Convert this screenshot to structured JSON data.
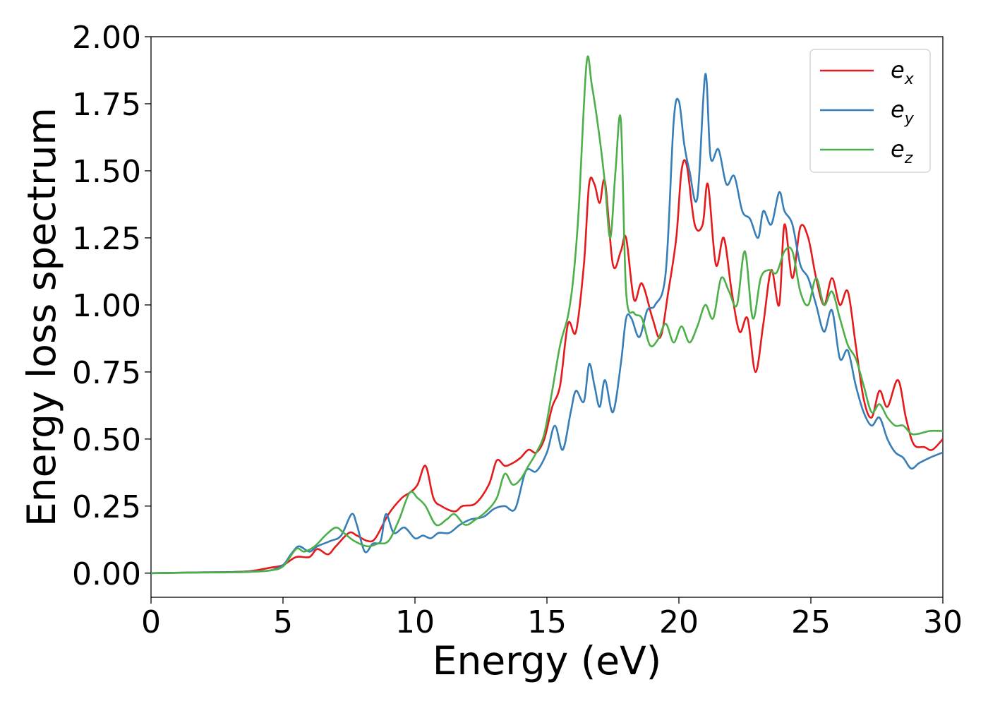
{
  "chart_data": {
    "type": "line",
    "title": "",
    "xlabel": "Energy (eV)",
    "ylabel": "Energy loss spectrum",
    "xlim": [
      0,
      30
    ],
    "ylim": [
      -0.09,
      2.0
    ],
    "xticks": [
      "0",
      "5",
      "10",
      "15",
      "20",
      "25",
      "30"
    ],
    "yticks": [
      "0.00",
      "0.25",
      "0.50",
      "0.75",
      "1.00",
      "1.25",
      "1.50",
      "1.75",
      "2.00"
    ],
    "grid": false,
    "legend_position": "top-right",
    "legend": [
      {
        "base": "e",
        "sub": "x"
      },
      {
        "base": "e",
        "sub": "y"
      },
      {
        "base": "e",
        "sub": "z"
      }
    ],
    "series": [
      {
        "name": "e_x",
        "color": "#e41a1c",
        "x": [
          0,
          2,
          3,
          3.8,
          4.5,
          5,
          5.5,
          6,
          6.3,
          6.7,
          7,
          7.5,
          7.8,
          8.2,
          8.5,
          9,
          9.5,
          9.8,
          10.1,
          10.4,
          10.7,
          11,
          11.5,
          11.8,
          12.3,
          12.8,
          13.1,
          13.4,
          13.7,
          14,
          14.3,
          14.6,
          14.9,
          15.2,
          15.5,
          15.8,
          16.1,
          16.4,
          16.6,
          16.8,
          17,
          17.2,
          17.5,
          17.8,
          18,
          18.3,
          18.6,
          19,
          19.3,
          19.6,
          19.9,
          20.1,
          20.3,
          20.6,
          20.9,
          21.1,
          21.4,
          21.7,
          22,
          22.3,
          22.6,
          22.9,
          23.2,
          23.5,
          23.8,
          24,
          24.3,
          24.6,
          24.9,
          25.2,
          25.5,
          25.8,
          26.1,
          26.4,
          26.7,
          27,
          27.3,
          27.6,
          27.9,
          28.3,
          28.6,
          28.9,
          29.3,
          29.6,
          30
        ],
        "y": [
          0,
          0.003,
          0.004,
          0.008,
          0.02,
          0.03,
          0.06,
          0.06,
          0.09,
          0.07,
          0.1,
          0.15,
          0.14,
          0.12,
          0.13,
          0.22,
          0.28,
          0.3,
          0.33,
          0.4,
          0.28,
          0.25,
          0.23,
          0.25,
          0.26,
          0.33,
          0.42,
          0.4,
          0.41,
          0.43,
          0.46,
          0.45,
          0.5,
          0.62,
          0.7,
          0.93,
          0.9,
          1.15,
          1.45,
          1.45,
          1.38,
          1.46,
          1.15,
          1.2,
          1.25,
          1.02,
          1.08,
          0.95,
          0.88,
          1.05,
          1.25,
          1.5,
          1.52,
          1.3,
          1.3,
          1.45,
          1.15,
          1.25,
          1.05,
          0.9,
          0.95,
          0.75,
          0.93,
          1.13,
          1.0,
          1.3,
          1.1,
          1.29,
          1.25,
          1.1,
          1.0,
          1.1,
          1.0,
          1.05,
          0.85,
          0.65,
          0.58,
          0.68,
          0.62,
          0.72,
          0.58,
          0.48,
          0.47,
          0.46,
          0.5
        ]
      },
      {
        "name": "e_y",
        "color": "#377eb8",
        "x": [
          0,
          2,
          3,
          3.8,
          4.5,
          5,
          5.3,
          5.6,
          6,
          6.3,
          6.8,
          7.2,
          7.6,
          7.8,
          8.1,
          8.4,
          8.7,
          8.9,
          9.2,
          9.6,
          10,
          10.3,
          10.6,
          10.9,
          11.3,
          11.7,
          12.1,
          12.6,
          13,
          13.4,
          13.8,
          14.2,
          14.6,
          15,
          15.3,
          15.6,
          15.9,
          16.1,
          16.4,
          16.6,
          16.8,
          17,
          17.2,
          17.5,
          17.8,
          18,
          18.2,
          18.5,
          18.8,
          19.1,
          19.5,
          19.8,
          20,
          20.2,
          20.4,
          20.7,
          21,
          21.2,
          21.5,
          21.8,
          22.1,
          22.4,
          22.7,
          23,
          23.2,
          23.5,
          23.8,
          24,
          24.3,
          24.6,
          24.9,
          25.2,
          25.5,
          25.8,
          26.1,
          26.4,
          26.7,
          27,
          27.3,
          27.6,
          27.9,
          28.2,
          28.5,
          28.8,
          29.1,
          29.5,
          30
        ],
        "y": [
          0,
          0.003,
          0.004,
          0.006,
          0.01,
          0.03,
          0.07,
          0.1,
          0.08,
          0.1,
          0.12,
          0.14,
          0.22,
          0.18,
          0.08,
          0.11,
          0.12,
          0.22,
          0.15,
          0.17,
          0.13,
          0.14,
          0.13,
          0.15,
          0.15,
          0.18,
          0.2,
          0.21,
          0.24,
          0.25,
          0.24,
          0.38,
          0.38,
          0.45,
          0.55,
          0.46,
          0.6,
          0.68,
          0.64,
          0.78,
          0.7,
          0.62,
          0.72,
          0.6,
          0.78,
          0.95,
          0.95,
          0.88,
          0.98,
          1.0,
          1.12,
          1.68,
          1.76,
          1.6,
          1.5,
          1.4,
          1.86,
          1.55,
          1.58,
          1.45,
          1.48,
          1.35,
          1.32,
          1.25,
          1.35,
          1.3,
          1.42,
          1.35,
          1.3,
          1.15,
          1.1,
          1.0,
          0.9,
          0.98,
          0.8,
          0.83,
          0.7,
          0.6,
          0.55,
          0.58,
          0.5,
          0.45,
          0.43,
          0.39,
          0.41,
          0.43,
          0.45
        ]
      },
      {
        "name": "e_z",
        "color": "#4daf4a",
        "x": [
          0,
          2,
          3,
          3.8,
          4.5,
          5,
          5.5,
          5.8,
          6.2,
          6.6,
          7,
          7.3,
          7.7,
          8.2,
          8.6,
          9,
          9.4,
          9.8,
          10.1,
          10.4,
          10.8,
          11.2,
          11.5,
          11.9,
          12.3,
          12.7,
          13.1,
          13.4,
          13.7,
          14,
          14.3,
          14.6,
          14.9,
          15.2,
          15.5,
          15.8,
          16,
          16.2,
          16.5,
          16.7,
          17,
          17.2,
          17.4,
          17.6,
          17.8,
          18,
          18.3,
          18.6,
          18.9,
          19.2,
          19.5,
          19.8,
          20.1,
          20.4,
          20.7,
          21,
          21.3,
          21.6,
          21.9,
          22.2,
          22.5,
          22.8,
          23.1,
          23.4,
          23.7,
          24,
          24.3,
          24.6,
          24.9,
          25.2,
          25.5,
          25.8,
          26.1,
          26.4,
          26.7,
          27,
          27.3,
          27.6,
          27.9,
          28.2,
          28.5,
          28.8,
          29.1,
          29.5,
          30
        ],
        "y": [
          0,
          0.002,
          0.003,
          0.005,
          0.01,
          0.025,
          0.09,
          0.08,
          0.1,
          0.14,
          0.17,
          0.15,
          0.12,
          0.1,
          0.11,
          0.12,
          0.2,
          0.3,
          0.28,
          0.25,
          0.18,
          0.2,
          0.22,
          0.18,
          0.2,
          0.23,
          0.28,
          0.37,
          0.33,
          0.35,
          0.4,
          0.45,
          0.52,
          0.68,
          0.85,
          0.96,
          1.1,
          1.35,
          1.9,
          1.82,
          1.62,
          1.45,
          1.25,
          1.5,
          1.69,
          1.05,
          0.97,
          0.95,
          0.85,
          0.87,
          0.93,
          0.86,
          0.92,
          0.86,
          0.92,
          1.0,
          0.95,
          1.1,
          1.05,
          1.0,
          1.2,
          0.95,
          1.1,
          1.13,
          1.12,
          1.2,
          1.2,
          1.05,
          1.0,
          1.1,
          1.0,
          1.05,
          0.95,
          0.85,
          0.8,
          0.7,
          0.6,
          0.63,
          0.58,
          0.55,
          0.55,
          0.52,
          0.52,
          0.53,
          0.53
        ]
      }
    ]
  }
}
